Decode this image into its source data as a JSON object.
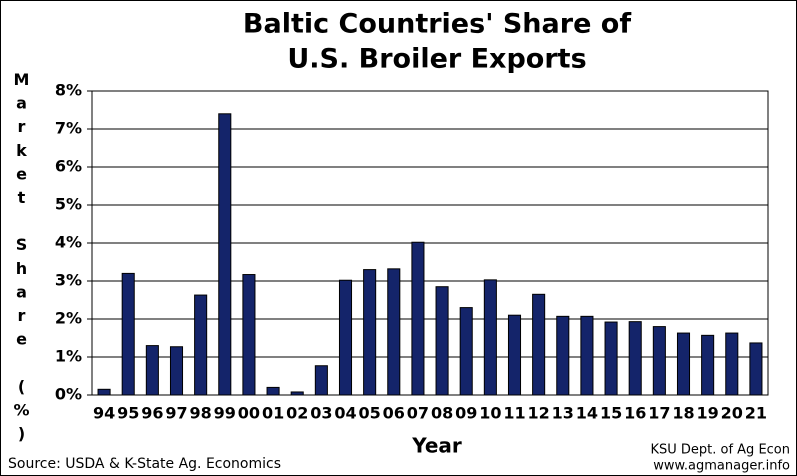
{
  "chart_data": {
    "type": "bar",
    "title": [
      "Baltic Countries' Share of",
      "U.S. Broiler Exports"
    ],
    "xlabel": "Year",
    "ylabel": "Market Share (%)",
    "source": "Source:  USDA & K-State Ag. Economics",
    "credit": [
      "KSU Dept. of Ag Econ",
      "www.agmanager.info"
    ],
    "categories": [
      "94",
      "95",
      "96",
      "97",
      "98",
      "99",
      "00",
      "01",
      "02",
      "03",
      "04",
      "05",
      "06",
      "07",
      "08",
      "09",
      "10",
      "11",
      "12",
      "13",
      "14",
      "15",
      "16",
      "17",
      "18",
      "19",
      "20",
      "21"
    ],
    "values": [
      0.15,
      3.2,
      1.3,
      1.27,
      2.63,
      7.4,
      3.17,
      0.2,
      0.08,
      0.77,
      3.02,
      3.3,
      3.32,
      4.02,
      2.85,
      2.3,
      3.03,
      2.1,
      2.65,
      2.07,
      2.07,
      1.92,
      1.93,
      1.8,
      1.63,
      1.57,
      1.63,
      1.37
    ],
    "color": "#14246a",
    "ylim": [
      0,
      8
    ],
    "yticks": [
      {
        "value": 0,
        "label": "0%"
      },
      {
        "value": 1,
        "label": "1%"
      },
      {
        "value": 2,
        "label": "2%"
      },
      {
        "value": 3,
        "label": "3%"
      },
      {
        "value": 4,
        "label": "4%"
      },
      {
        "value": 5,
        "label": "5%"
      },
      {
        "value": 6,
        "label": "6%"
      },
      {
        "value": 7,
        "label": "7%"
      },
      {
        "value": 8,
        "label": "8%"
      }
    ],
    "grid": true
  }
}
